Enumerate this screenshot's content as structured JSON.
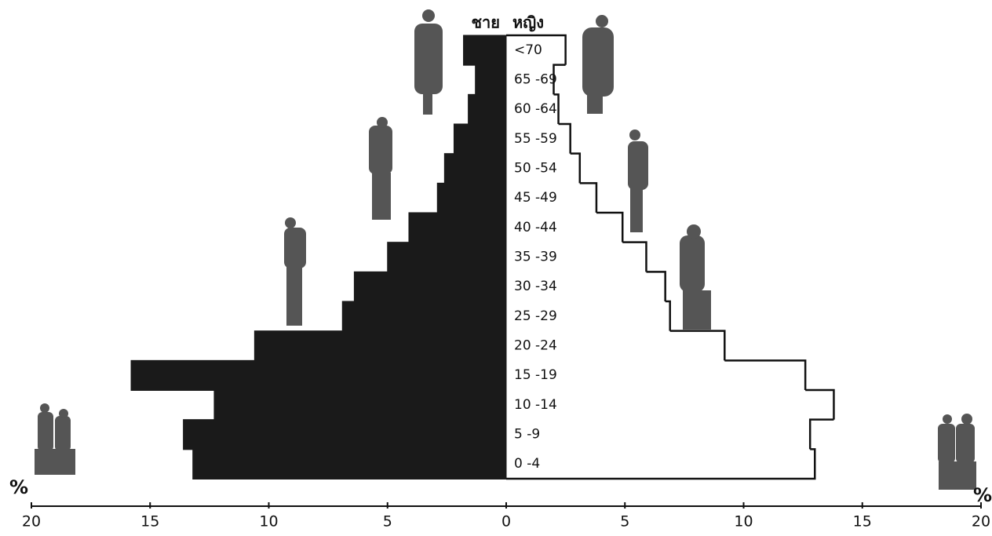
{
  "chart_data": {
    "type": "pyramid",
    "headers": [
      "ชาย",
      "หญิง"
    ],
    "axis_unit": "%",
    "categories": [
      "0 -4",
      "5 -9",
      "10 -14",
      "15 -19",
      "20 -24",
      "25 -29",
      "30 -34",
      "35 -39",
      "40 -44",
      "45 -49",
      "50 -54",
      "55 -59",
      "60 -64",
      "65 -69",
      "<70"
    ],
    "series": [
      {
        "name": "ชาย",
        "color": "#1a1a1a",
        "side": "left",
        "values": [
          13.2,
          13.6,
          12.3,
          15.8,
          10.6,
          6.9,
          6.4,
          5.0,
          4.1,
          2.9,
          2.6,
          2.2,
          1.6,
          1.3,
          1.8
        ]
      },
      {
        "name": "หญิง",
        "color": "#ffffff",
        "side": "right",
        "values": [
          13.0,
          12.8,
          13.8,
          12.6,
          9.2,
          6.9,
          6.7,
          5.9,
          4.9,
          3.8,
          3.1,
          2.7,
          2.2,
          2.0,
          2.5
        ]
      }
    ],
    "xlim": [
      -20,
      20
    ],
    "xticks": [
      {
        "value": -20,
        "label": "20"
      },
      {
        "value": -15,
        "label": "15"
      },
      {
        "value": -10,
        "label": "10"
      },
      {
        "value": -5,
        "label": "5"
      },
      0,
      5,
      10,
      15,
      20
    ]
  }
}
